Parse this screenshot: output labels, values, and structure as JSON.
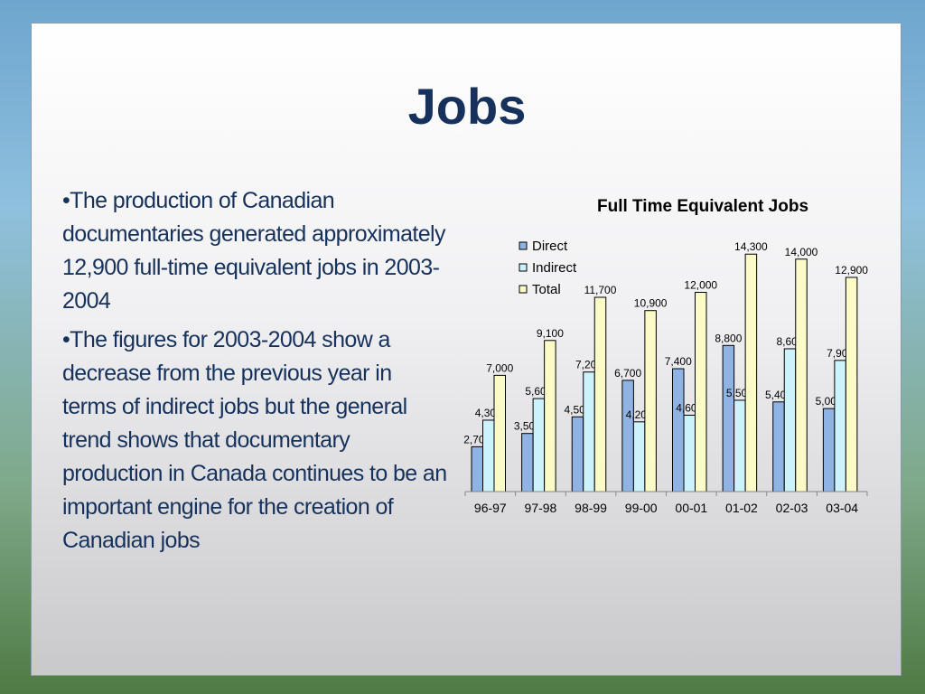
{
  "slide": {
    "title": "Jobs",
    "bullets": [
      "•The production of Canadian documentaries generated approximately 12,900 full-time equivalent jobs in 2003-2004",
      "•The figures for 2003-2004 show a decrease from the previous year in terms of indirect jobs but the general trend shows that documentary production in Canada continues to be an important engine for the creation of Canadian jobs"
    ]
  },
  "chart_data": {
    "type": "bar",
    "title": "Full Time Equivalent Jobs",
    "categories": [
      "96-97",
      "97-98",
      "98-99",
      "99-00",
      "00-01",
      "01-02",
      "02-03",
      "03-04"
    ],
    "series": [
      {
        "name": "Direct",
        "color": "#8fb4e3",
        "values": [
          2700,
          3500,
          4500,
          6700,
          7400,
          8800,
          5400,
          5000
        ],
        "labels": [
          "2,700",
          "3,500",
          "4,500",
          "6,700",
          "7,400",
          "8,800",
          "5,400",
          "5,000"
        ]
      },
      {
        "name": "Indirect",
        "color": "#ccf2fb",
        "values": [
          4300,
          5600,
          7200,
          4200,
          4600,
          5500,
          8600,
          7900
        ],
        "labels": [
          "4,300",
          "5,600",
          "7,200",
          "4,200",
          "4,600",
          "5,500",
          "8,600",
          "7,900"
        ]
      },
      {
        "name": "Total",
        "color": "#fbfbc8",
        "values": [
          7000,
          9100,
          11700,
          10900,
          12000,
          14300,
          14000,
          12900
        ],
        "labels": [
          "7,000",
          "9,100",
          "11,700",
          "10,900",
          "12,000",
          "14,300",
          "14,000",
          "12,900"
        ]
      }
    ],
    "ylim": [
      0,
      16000
    ],
    "legend": "top-left",
    "grid": false
  }
}
